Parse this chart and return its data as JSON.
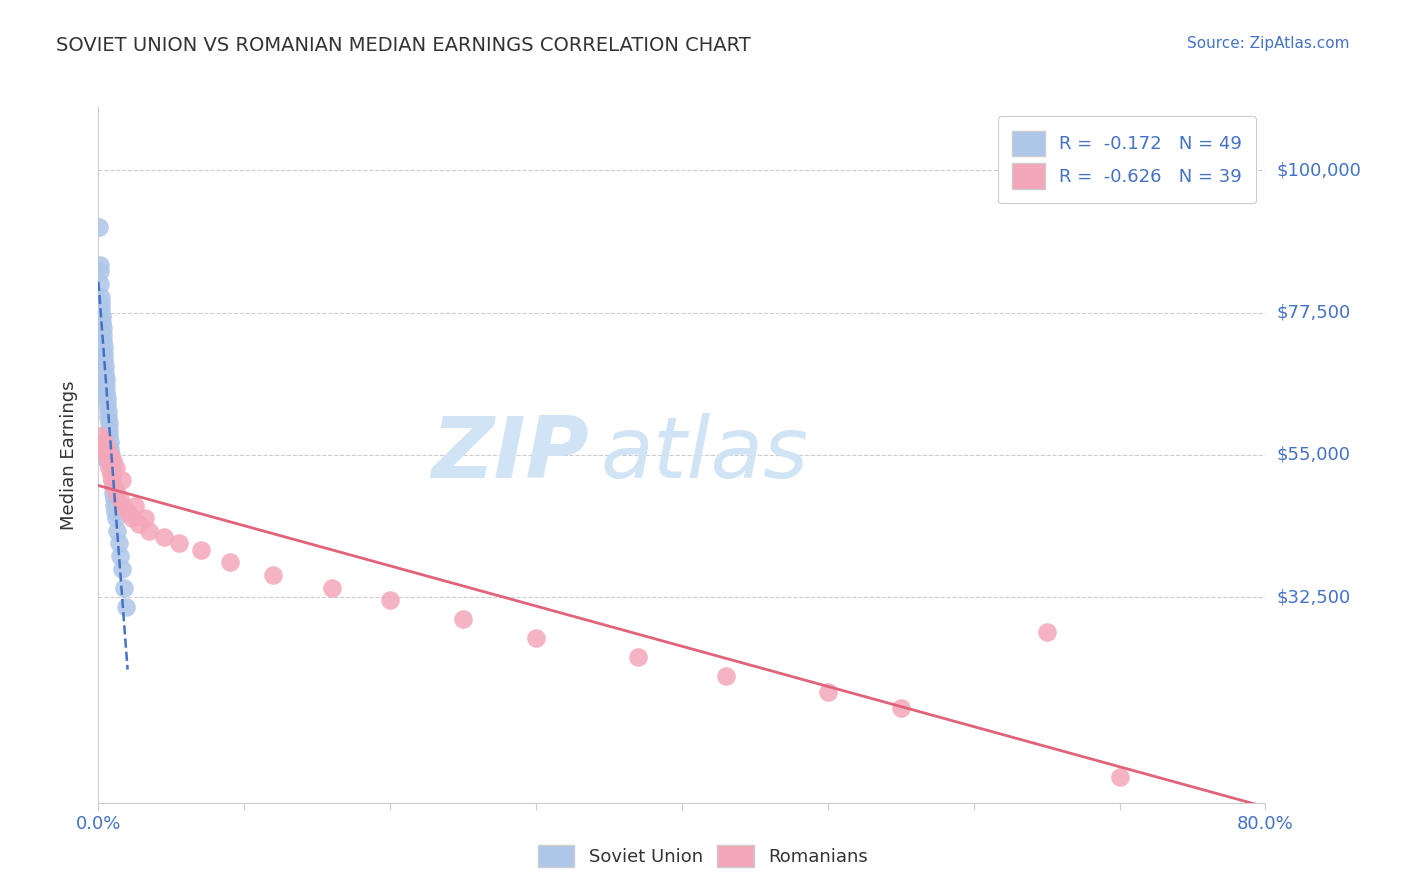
{
  "title": "SOVIET UNION VS ROMANIAN MEDIAN EARNINGS CORRELATION CHART",
  "source": "Source: ZipAtlas.com",
  "ylabel": "Median Earnings",
  "yticks": [
    0,
    32500,
    55000,
    77500,
    100000
  ],
  "ytick_labels": [
    "",
    "$32,500",
    "$55,000",
    "$77,500",
    "$100,000"
  ],
  "xmin": 0.0,
  "xmax": 80.0,
  "ymin": 0,
  "ymax": 110000,
  "soviet_R": -0.172,
  "soviet_N": 49,
  "romanian_R": -0.626,
  "romanian_N": 39,
  "soviet_color": "#aec6e8",
  "romanian_color": "#f4a7b9",
  "soviet_line_color": "#4472c4",
  "romanian_line_color": "#e0637a",
  "title_color": "#333333",
  "axis_label_color": "#4472c4",
  "legend_text_color": "#4472c4",
  "watermark_color": "#d0e4f5",
  "background_color": "#ffffff",
  "grid_color": "#cccccc",
  "soviet_x": [
    0.05,
    0.08,
    0.1,
    0.12,
    0.15,
    0.18,
    0.2,
    0.22,
    0.25,
    0.28,
    0.3,
    0.33,
    0.35,
    0.38,
    0.4,
    0.42,
    0.45,
    0.48,
    0.5,
    0.52,
    0.55,
    0.58,
    0.6,
    0.65,
    0.68,
    0.7,
    0.72,
    0.75,
    0.78,
    0.8,
    0.85,
    0.88,
    0.9,
    0.92,
    0.95,
    0.98,
    1.0,
    1.05,
    1.1,
    1.15,
    1.2,
    1.3,
    1.4,
    1.5,
    1.6,
    1.75,
    1.9,
    0.42,
    0.62
  ],
  "soviet_y": [
    91000,
    85000,
    84000,
    82000,
    80000,
    79000,
    78000,
    77000,
    76000,
    75000,
    74000,
    73000,
    72000,
    71000,
    70000,
    69000,
    68000,
    67000,
    67000,
    66000,
    65000,
    64000,
    63000,
    62000,
    61000,
    60000,
    59000,
    58000,
    57000,
    56000,
    55000,
    54000,
    53000,
    52000,
    51000,
    50000,
    49000,
    48000,
    47000,
    46000,
    45000,
    43000,
    41000,
    39000,
    37000,
    34000,
    31000,
    55000,
    54000
  ],
  "romanian_x": [
    0.2,
    0.35,
    0.45,
    0.55,
    0.65,
    0.75,
    0.85,
    0.95,
    1.1,
    1.3,
    1.5,
    1.7,
    2.0,
    2.3,
    2.8,
    3.5,
    4.5,
    5.5,
    7.0,
    9.0,
    12.0,
    16.0,
    20.0,
    25.0,
    30.0,
    37.0,
    43.0,
    50.0,
    55.0,
    0.4,
    0.6,
    0.8,
    1.0,
    1.2,
    1.6,
    2.5,
    3.2,
    65.0,
    70.0
  ],
  "romanian_y": [
    58000,
    57000,
    56000,
    55000,
    54000,
    53000,
    52000,
    51000,
    50000,
    49000,
    48000,
    47000,
    46000,
    45000,
    44000,
    43000,
    42000,
    41000,
    40000,
    38000,
    36000,
    34000,
    32000,
    29000,
    26000,
    23000,
    20000,
    17500,
    15000,
    57000,
    56000,
    55000,
    54000,
    53000,
    51000,
    47000,
    45000,
    27000,
    4000
  ],
  "watermark_zip": "ZIP",
  "watermark_atlas": "atlas",
  "bottom_legend_labels": [
    "Soviet Union",
    "Romanians"
  ]
}
